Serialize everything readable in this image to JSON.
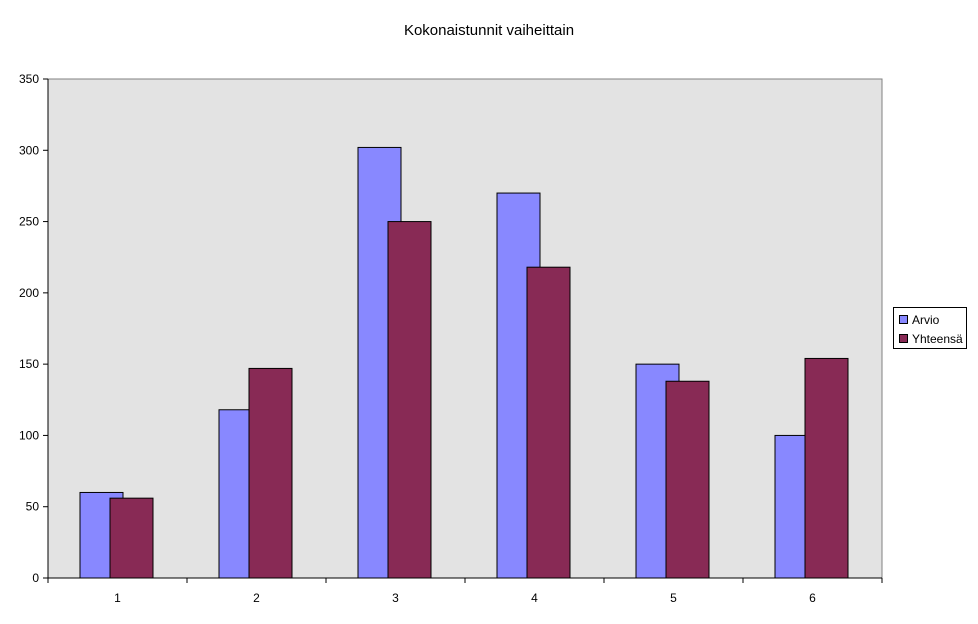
{
  "chart_data": {
    "type": "bar",
    "title": "Kokonaistunnit vaiheittain",
    "xlabel": "",
    "ylabel": "",
    "categories": [
      "1",
      "2",
      "3",
      "4",
      "5",
      "6"
    ],
    "series": [
      {
        "name": "Arvio",
        "values": [
          60,
          118,
          302,
          270,
          150,
          100
        ],
        "color": "#8888FF"
      },
      {
        "name": "Yhteensä",
        "values": [
          56,
          147,
          250,
          218,
          138,
          154
        ],
        "color": "#882A55"
      }
    ],
    "ylim": [
      0,
      350
    ],
    "yticks": [
      0,
      50,
      100,
      150,
      200,
      250,
      300,
      350
    ],
    "grid": false,
    "plot_background": "#E3E3E3",
    "legend_position": "right"
  }
}
